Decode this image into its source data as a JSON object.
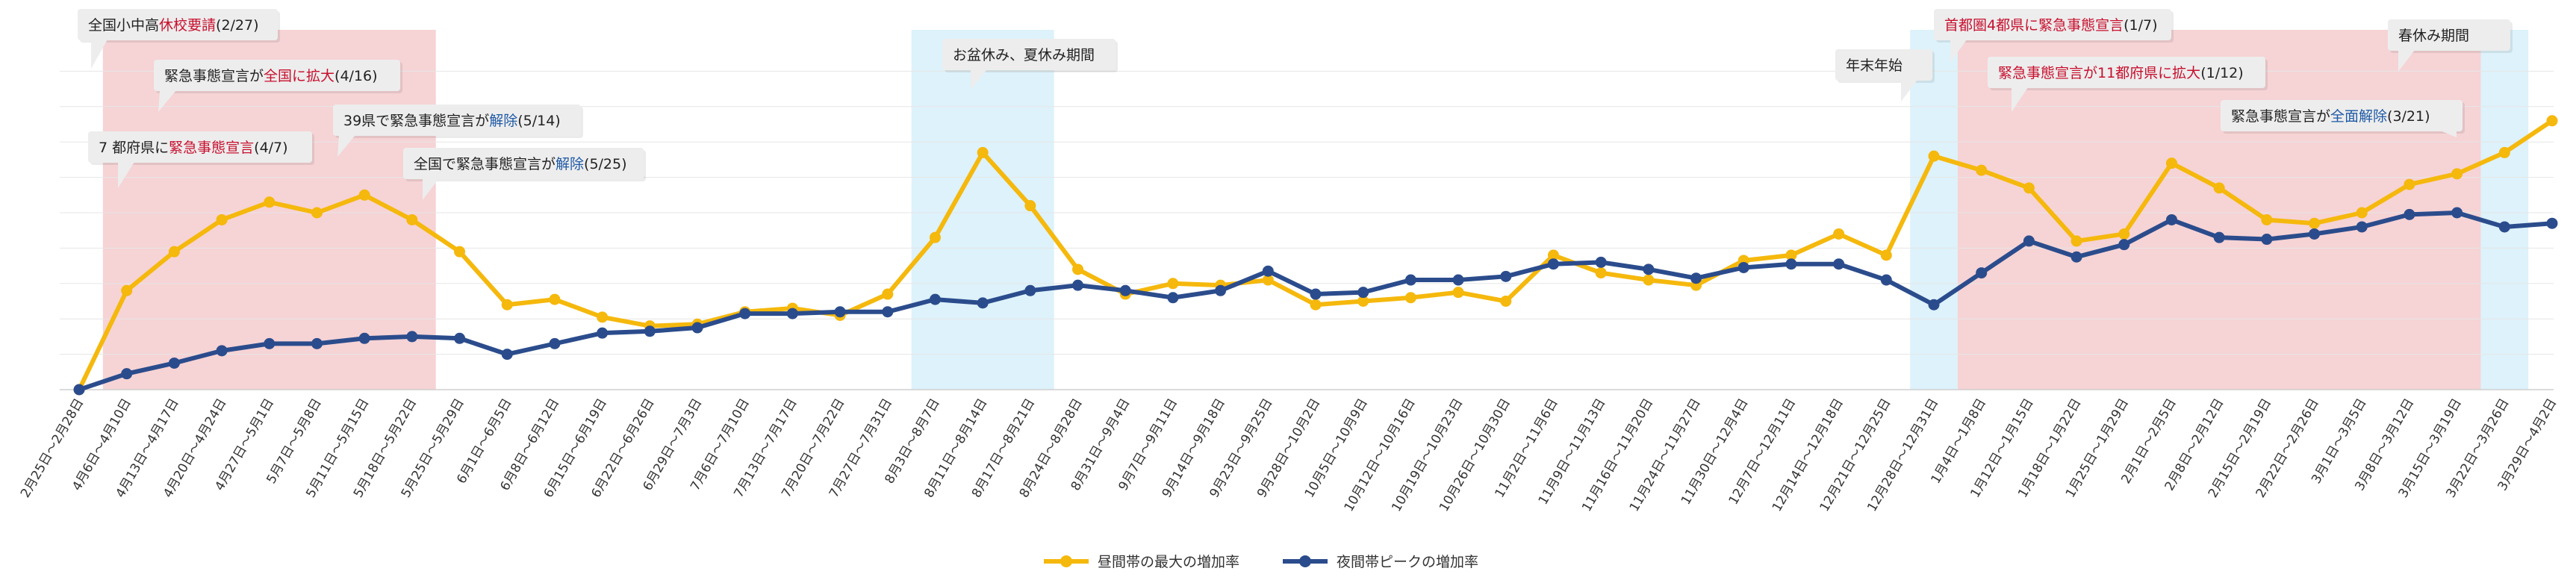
{
  "chart_data": {
    "type": "line",
    "categories": [
      "2月25日〜2月28日",
      "4月6日〜4月10日",
      "4月13日〜4月17日",
      "4月20日〜4月24日",
      "4月27日〜5月1日",
      "5月7日〜5月8日",
      "5月11日〜5月15日",
      "5月18日〜5月22日",
      "5月25日〜5月29日",
      "6月1日〜6月5日",
      "6月8日〜6月12日",
      "6月15日〜6月19日",
      "6月22日〜6月26日",
      "6月29日〜7月3日",
      "7月6日〜7月10日",
      "7月13日〜7月17日",
      "7月20日〜7月22日",
      "7月27日〜7月31日",
      "8月3日〜8月7日",
      "8月11日〜8月14日",
      "8月17日〜8月21日",
      "8月24日〜8月28日",
      "8月31日〜9月4日",
      "9月7日〜9月11日",
      "9月14日〜9月18日",
      "9月23日〜9月25日",
      "9月28日〜10月2日",
      "10月5日〜10月9日",
      "10月12日〜10月16日",
      "10月19日〜10月23日",
      "10月26日〜10月30日",
      "11月2日〜11月6日",
      "11月9日〜11月13日",
      "11月16日〜11月20日",
      "11月24日〜11月27日",
      "11月30日〜12月4日",
      "12月7日〜12月11日",
      "12月14日〜12月18日",
      "12月21日〜12月25日",
      "12月28日〜12月31日",
      "1月4日〜1月8日",
      "1月12日〜1月15日",
      "1月18日〜1月22日",
      "1月25日〜1月29日",
      "2月1日〜2月5日",
      "2月8日〜2月12日",
      "2月15日〜2月19日",
      "2月22日〜2月26日",
      "3月1日〜3月5日",
      "3月8日〜3月12日",
      "3月15日〜3月19日",
      "3月22日〜3月26日",
      "3月29日〜4月2日"
    ],
    "series": [
      {
        "name": "昼間帯の最大の増加率",
        "color": "#F5B80C",
        "values": [
          0,
          28,
          39,
          48,
          53,
          50,
          55,
          48,
          39,
          24,
          25.5,
          20.5,
          18,
          18.5,
          22,
          23,
          21,
          27,
          43,
          67,
          52,
          34,
          27,
          30,
          29.5,
          31,
          24,
          25,
          26,
          27.5,
          25,
          38,
          33,
          31,
          29.5,
          36.5,
          38,
          44,
          38,
          66,
          62,
          57,
          42,
          44,
          64,
          57,
          48,
          47,
          50,
          58,
          61,
          67,
          76
        ]
      },
      {
        "name": "夜間帯ピークの増加率",
        "color": "#2B4C8C",
        "values": [
          0,
          4.5,
          7.5,
          11,
          13,
          13,
          14.5,
          15,
          14.5,
          10,
          13,
          16,
          16.5,
          17.5,
          21.5,
          21.5,
          22,
          22,
          25.5,
          24.5,
          28,
          29.5,
          28,
          26,
          28,
          33.5,
          27,
          27.5,
          31,
          31,
          32,
          35.5,
          36,
          34,
          31.5,
          34.5,
          35.5,
          35.5,
          31,
          24,
          33,
          42,
          37.5,
          41,
          48,
          43,
          42.5,
          44,
          46,
          49.5,
          50,
          46,
          47
        ]
      }
    ],
    "ylim": [
      0,
      100
    ],
    "grid": true,
    "legend_position": "bottom-center",
    "periods": [
      {
        "kind": "emergency",
        "color": "#F6D3D5",
        "start_index": 1,
        "end_index": 7
      },
      {
        "kind": "holiday",
        "color": "#DDF2FB",
        "start_index": 18,
        "end_index": 20
      },
      {
        "kind": "holiday",
        "color": "#DDF2FB",
        "start_index": 39,
        "end_index": 39
      },
      {
        "kind": "emergency",
        "color": "#F6D3D5",
        "start_index": 40,
        "end_index": 50
      },
      {
        "kind": "holiday",
        "color": "#DDF2FB",
        "start_index": 51,
        "end_index": 51
      }
    ],
    "annotations": [
      {
        "name": "callout-school-closure",
        "index": 0,
        "dir": "up",
        "parts": [
          {
            "t": "全国小中高",
            "c": "#222222"
          },
          {
            "t": "休校要請",
            "c": "#C8102E"
          },
          {
            "t": "(2/27)",
            "c": "#222222"
          }
        ]
      },
      {
        "name": "callout-expand-nationwide",
        "index": 1,
        "dir": "up",
        "parts": [
          {
            "t": "緊急事態宣言が",
            "c": "#222222"
          },
          {
            "t": "全国に拡大",
            "c": "#C8102E"
          },
          {
            "t": "(4/16)",
            "c": "#222222"
          }
        ]
      },
      {
        "name": "callout-seven-prefectures",
        "index": 1,
        "dir": "down",
        "parts": [
          {
            "t": "7 都府県に",
            "c": "#222222"
          },
          {
            "t": "緊急事態宣言",
            "c": "#C8102E"
          },
          {
            "t": "(4/7)",
            "c": "#222222"
          }
        ]
      },
      {
        "name": "callout-39-prefectures-lifted",
        "index": 6,
        "dir": "down",
        "parts": [
          {
            "t": "39県で緊急事態宣言が",
            "c": "#222222"
          },
          {
            "t": "解除",
            "c": "#1F5AA6"
          },
          {
            "t": "(5/14)",
            "c": "#222222"
          }
        ]
      },
      {
        "name": "callout-nationwide-lifted",
        "index": 8,
        "dir": "down",
        "parts": [
          {
            "t": "全国で緊急事態宣言が",
            "c": "#222222"
          },
          {
            "t": "解除",
            "c": "#1F5AA6"
          },
          {
            "t": "(5/25)",
            "c": "#222222"
          }
        ]
      },
      {
        "name": "callout-obon-summer",
        "index": 18.5,
        "dir": "up",
        "parts": [
          {
            "t": "お盆休み、夏休み期間",
            "c": "#222222"
          }
        ]
      },
      {
        "name": "callout-year-end",
        "index": 38.6,
        "dir": "up",
        "parts": [
          {
            "t": "年末年始",
            "c": "#222222"
          }
        ]
      },
      {
        "name": "callout-tokyo-area-four",
        "index": 40,
        "dir": "up",
        "parts": [
          {
            "t": "首都圏4都県に緊急事態宣言",
            "c": "#C8102E"
          },
          {
            "t": "(1/7)",
            "c": "#222222"
          }
        ]
      },
      {
        "name": "callout-eleven-prefectures",
        "index": 41,
        "dir": "up",
        "parts": [
          {
            "t": "緊急事態宣言が11都府県に拡大",
            "c": "#C8102E"
          },
          {
            "t": "(1/12)",
            "c": "#222222"
          }
        ]
      },
      {
        "name": "callout-spring-break",
        "index": 51,
        "dir": "up",
        "parts": [
          {
            "t": "春休み期間",
            "c": "#222222"
          }
        ]
      },
      {
        "name": "callout-fully-lifted",
        "index": 51,
        "dir": "down",
        "parts": [
          {
            "t": "緊急事態宣言が",
            "c": "#222222"
          },
          {
            "t": "全面解除",
            "c": "#1F5AA6"
          },
          {
            "t": "(3/21)",
            "c": "#222222"
          }
        ]
      }
    ]
  }
}
